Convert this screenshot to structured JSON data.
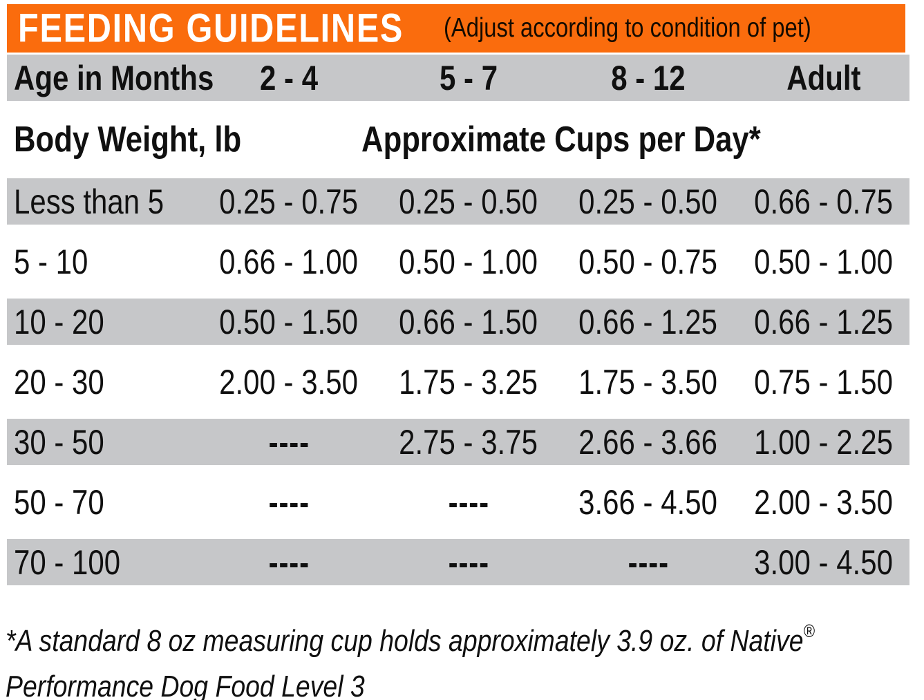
{
  "header": {
    "title": "FEEDING GUIDELINES",
    "subtitle": "(Adjust according to condition of pet)",
    "bg_color": "#FA6C0D"
  },
  "table": {
    "shade_color": "#C6C7C9",
    "age_header": {
      "label": "Age in Months",
      "col1": "2 - 4",
      "col2": "5 - 7",
      "col3": "8 - 12",
      "col4": "Adult"
    },
    "weight_header": {
      "label": "Body Weight, lb",
      "cups_label": "Approximate Cups per Day*"
    },
    "rows": [
      {
        "weight": "Less than 5",
        "values": [
          "0.25 - 0.75",
          "0.25 - 0.50",
          "0.25 - 0.50",
          "0.66 - 0.75"
        ],
        "shaded": true
      },
      {
        "weight": "5 - 10",
        "values": [
          "0.66 - 1.00",
          "0.50 - 1.00",
          "0.50 - 0.75",
          "0.50 - 1.00"
        ],
        "shaded": false
      },
      {
        "weight": "10 - 20",
        "values": [
          "0.50 - 1.50",
          "0.66 - 1.50",
          "0.66 - 1.25",
          "0.66 - 1.25"
        ],
        "shaded": true
      },
      {
        "weight": "20 - 30",
        "values": [
          "2.00 - 3.50",
          "1.75 - 3.25",
          "1.75 - 3.50",
          "0.75 - 1.50"
        ],
        "shaded": false
      },
      {
        "weight": "30 - 50",
        "values": [
          "----",
          "2.75 - 3.75",
          "2.66 - 3.66",
          "1.00 - 2.25"
        ],
        "shaded": true
      },
      {
        "weight": "50 - 70",
        "values": [
          "----",
          "----",
          "3.66 - 4.50",
          "2.00 - 3.50"
        ],
        "shaded": false
      },
      {
        "weight": "70 - 100",
        "values": [
          "----",
          "----",
          "----",
          "3.00 - 4.50"
        ],
        "shaded": true
      }
    ]
  },
  "footnote": {
    "line1": "*A standard 8 oz measuring cup holds approximately 3.9 oz. of Native",
    "reg_symbol": "®",
    "line2": "Performance Dog Food Level 3"
  }
}
